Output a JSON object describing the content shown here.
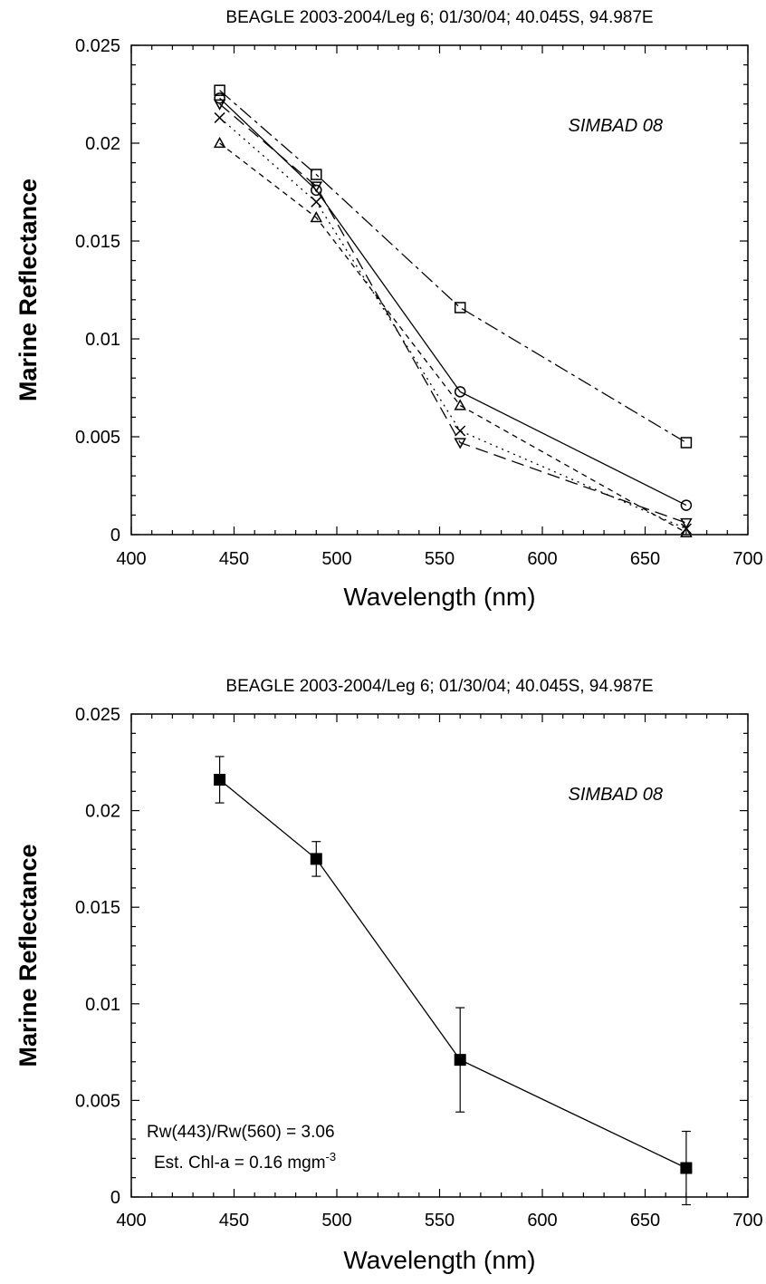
{
  "chart_data": [
    {
      "type": "line",
      "title": "BEAGLE 2003-2004/Leg 6; 01/30/04; 40.045S, 94.987E",
      "xlabel": "Wavelength (nm)",
      "ylabel": "Marine Reflectance",
      "xlim": [
        400,
        700
      ],
      "ylim": [
        0,
        0.025
      ],
      "xticks": [
        400,
        450,
        500,
        550,
        600,
        650,
        700
      ],
      "xtick_labels": [
        "400",
        "450",
        "500",
        "550",
        "600",
        "650",
        "700"
      ],
      "yticks": [
        0,
        0.005,
        0.01,
        0.015,
        0.02,
        0.025
      ],
      "ytick_labels": [
        "0",
        "0.005",
        "0.01",
        "0.015",
        "0.02",
        "0.025"
      ],
      "grid": false,
      "annotation": "SIMBAD 08",
      "x": [
        443,
        490,
        560,
        670
      ],
      "series": [
        {
          "marker": "circle",
          "dash": "solid",
          "values": [
            0.0223,
            0.0176,
            0.0073,
            0.0015
          ]
        },
        {
          "marker": "square",
          "dash": "dashdot",
          "values": [
            0.0227,
            0.0184,
            0.0116,
            0.0047
          ]
        },
        {
          "marker": "x",
          "dash": "dotted",
          "values": [
            0.0213,
            0.017,
            0.0053,
            0.0003
          ]
        },
        {
          "marker": "triangle-up",
          "dash": "dashed",
          "values": [
            0.02,
            0.0162,
            0.0066,
            0.0001
          ]
        },
        {
          "marker": "triangle-down",
          "dash": "longdash",
          "values": [
            0.022,
            0.0178,
            0.0047,
            0.0006
          ]
        }
      ]
    },
    {
      "type": "line",
      "title": "BEAGLE 2003-2004/Leg 6; 01/30/04; 40.045S, 94.987E",
      "xlabel": "Wavelength (nm)",
      "ylabel": "Marine Reflectance",
      "xlim": [
        400,
        700
      ],
      "ylim": [
        0,
        0.025
      ],
      "xticks": [
        400,
        450,
        500,
        550,
        600,
        650,
        700
      ],
      "xtick_labels": [
        "400",
        "450",
        "500",
        "550",
        "600",
        "650",
        "700"
      ],
      "yticks": [
        0,
        0.005,
        0.01,
        0.015,
        0.02,
        0.025
      ],
      "ytick_labels": [
        "0",
        "0.005",
        "0.01",
        "0.015",
        "0.02",
        "0.025"
      ],
      "grid": false,
      "annotation": "SIMBAD 08",
      "note_line1": "Rw(443)/Rw(560) = 3.06",
      "note_line2_text": "Est. Chl-a = 0.16 mgm",
      "note_line2_sup": "-3",
      "x": [
        443,
        490,
        560,
        670
      ],
      "series": [
        {
          "marker": "filled-square",
          "dash": "solid",
          "values": [
            0.0216,
            0.0175,
            0.0071,
            0.0015
          ],
          "error": [
            0.0012,
            0.0009,
            0.0027,
            0.0019
          ]
        }
      ]
    }
  ]
}
